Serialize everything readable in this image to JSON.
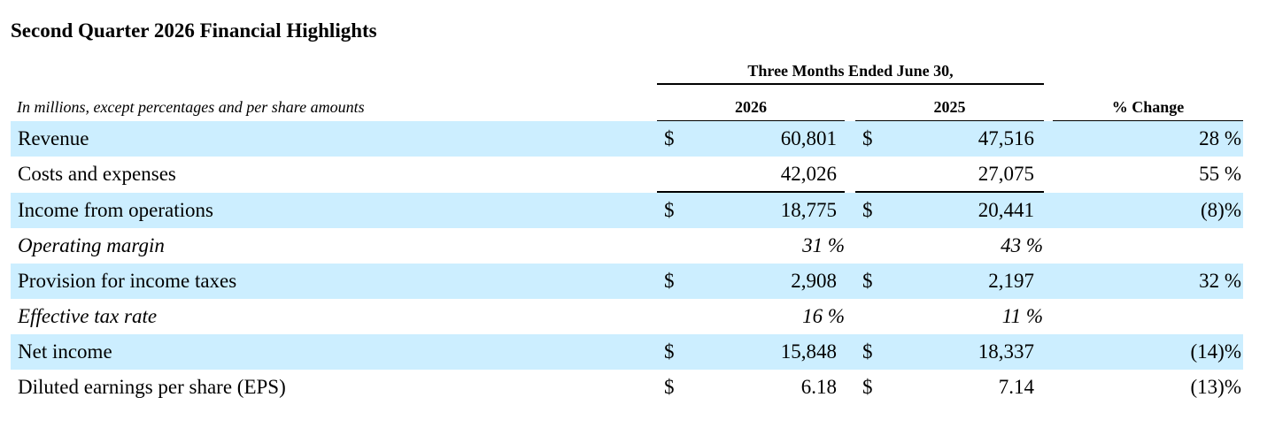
{
  "title": "Second Quarter 2026 Financial Highlights",
  "units_note": "In millions, except percentages and per share amounts",
  "group_header": "Three Months Ended June 30,",
  "columns": [
    "2026",
    "2025",
    "% Change"
  ],
  "rows": [
    {
      "label": "Revenue",
      "cur1": "$",
      "v1": "60,801",
      "cur2": "$",
      "v2": "47,516",
      "change": "28 %"
    },
    {
      "label": "Costs and expenses",
      "cur1": "",
      "v1": "42,026",
      "cur2": "",
      "v2": "27,075",
      "change": "55 %"
    },
    {
      "label": "Income from operations",
      "cur1": "$",
      "v1": "18,775",
      "cur2": "$",
      "v2": "20,441",
      "change": "(8)%"
    },
    {
      "label": "Operating margin",
      "v1": "31 %",
      "v2": "43 %"
    },
    {
      "label": "Provision for income taxes",
      "cur1": "$",
      "v1": "2,908",
      "cur2": "$",
      "v2": "2,197",
      "change": "32 %"
    },
    {
      "label": "Effective tax rate",
      "v1": "16 %",
      "v2": "11 %"
    },
    {
      "label": "Net income",
      "cur1": "$",
      "v1": "15,848",
      "cur2": "$",
      "v2": "18,337",
      "change": "(14)%"
    },
    {
      "label": "Diluted earnings per share (EPS)",
      "cur1": "$",
      "v1": "6.18",
      "cur2": "$",
      "v2": "7.14",
      "change": "(13)%"
    }
  ],
  "colors": {
    "row_shading": "#cceeff",
    "text": "#000000"
  }
}
